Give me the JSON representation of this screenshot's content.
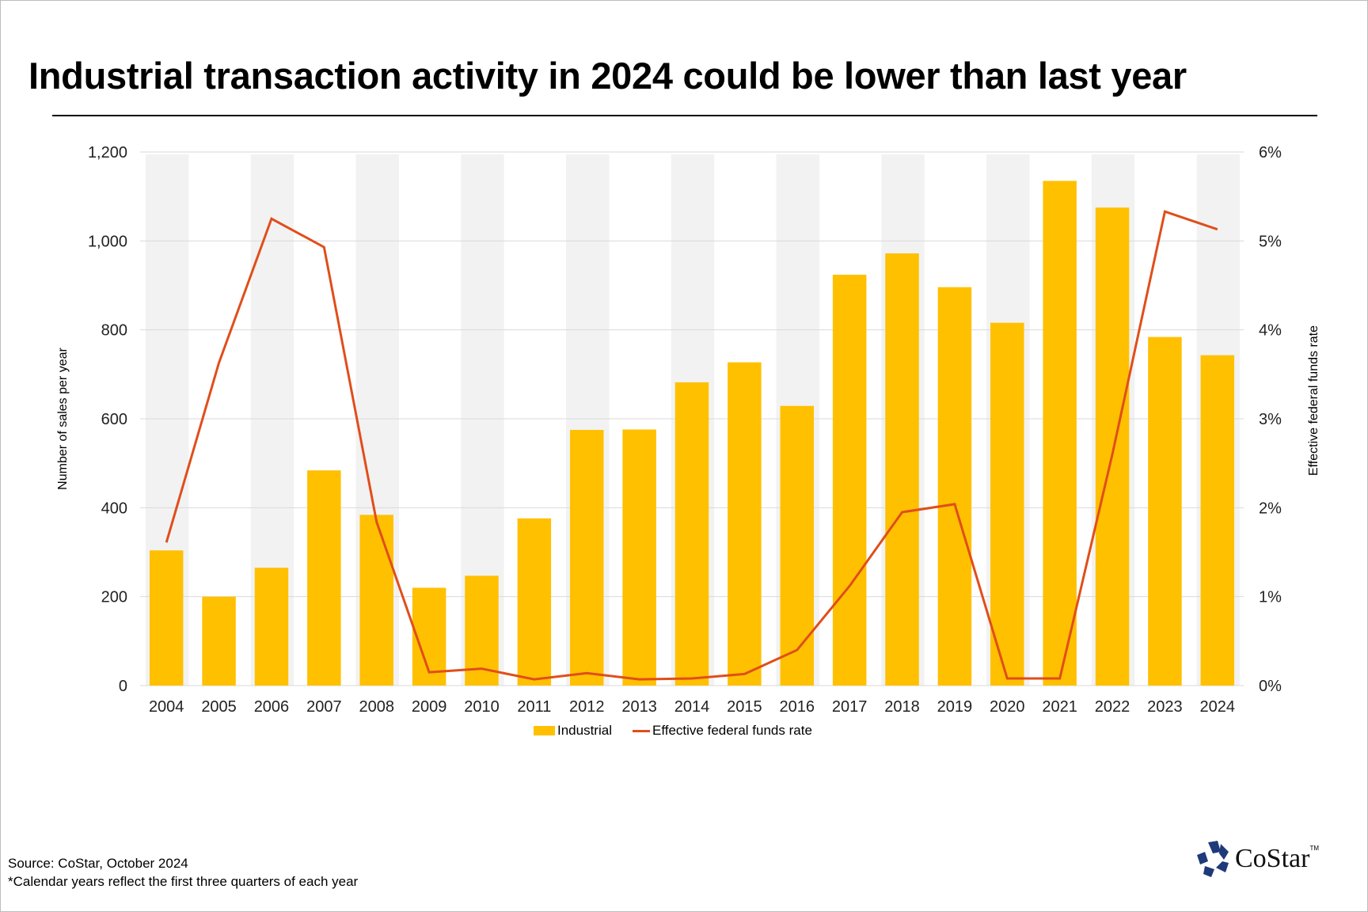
{
  "header": {
    "title": "Industrial transaction activity in 2024 could be lower than last year"
  },
  "legend": {
    "bar_label": "Industrial",
    "line_label": "Effective federal funds rate"
  },
  "footer": {
    "source": "Source: CoStar, October 2024",
    "note": "*Calendar years reflect the first three quarters of each year"
  },
  "logo": {
    "text": "CoStar",
    "tm": "TM"
  },
  "colors": {
    "bar": "#FFC000",
    "line": "#E04E1B",
    "band": "#F2F2F2",
    "grid": "#D9D9D9"
  },
  "chart_data": {
    "type": "bar",
    "title": "Industrial transaction activity in 2024 could be lower than last year",
    "categories": [
      "2004",
      "2005",
      "2006",
      "2007",
      "2008",
      "2009",
      "2010",
      "2011",
      "2012",
      "2013",
      "2014",
      "2015",
      "2016",
      "2017",
      "2018",
      "2019",
      "2020",
      "2021",
      "2022",
      "2023",
      "2024"
    ],
    "series": [
      {
        "name": "Industrial",
        "type": "bar",
        "axis": "left",
        "values": [
          304,
          200,
          265,
          484,
          384,
          220,
          247,
          376,
          575,
          576,
          682,
          727,
          629,
          924,
          972,
          896,
          816,
          1135,
          1075,
          784,
          743
        ]
      },
      {
        "name": "Effective federal funds rate",
        "type": "line",
        "axis": "right",
        "unit": "%",
        "values": [
          1.61,
          3.63,
          5.25,
          4.93,
          1.84,
          0.15,
          0.19,
          0.07,
          0.14,
          0.07,
          0.08,
          0.13,
          0.4,
          1.12,
          1.95,
          2.04,
          0.08,
          0.08,
          2.6,
          5.33,
          5.13
        ]
      }
    ],
    "ylabel": "Number of sales per year",
    "ylabel_right": "Effective federal funds rate",
    "ylim": [
      0,
      1200
    ],
    "ylim_right": [
      0,
      6
    ],
    "yticks": [
      "0",
      "200",
      "400",
      "600",
      "800",
      "1,000",
      "1,200"
    ],
    "yticks_right": [
      "0%",
      "1%",
      "2%",
      "3%",
      "4%",
      "5%",
      "6%"
    ],
    "grid": true,
    "legend_position": "bottom-center"
  }
}
